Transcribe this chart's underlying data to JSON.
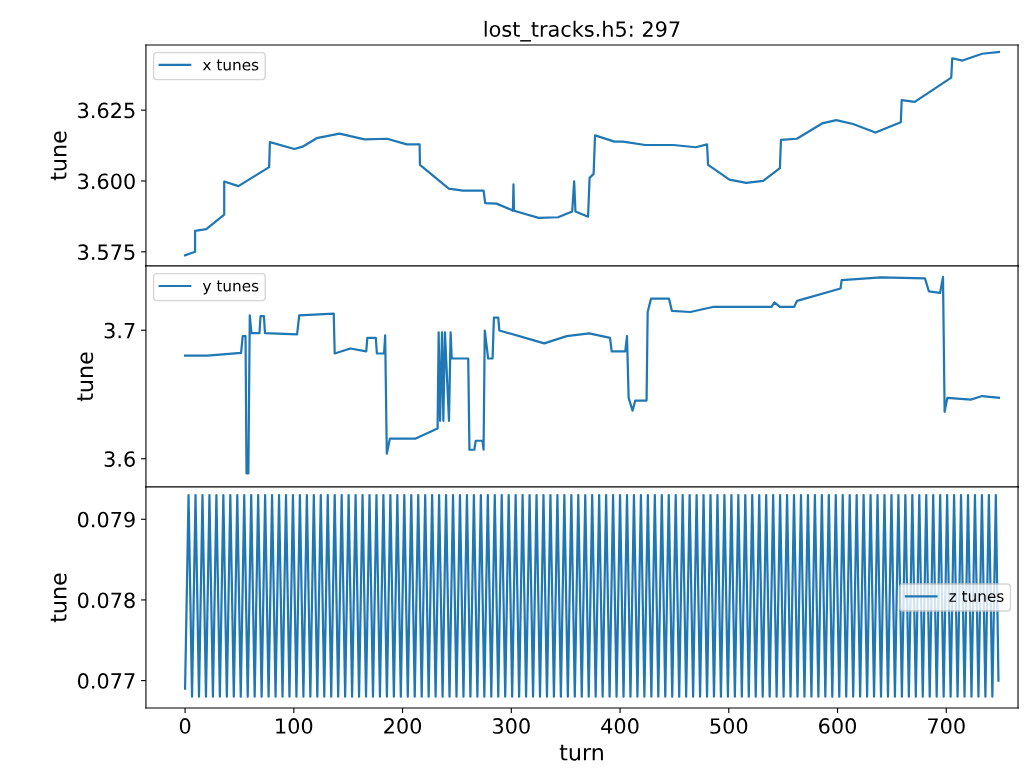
{
  "chart_data": [
    {
      "type": "line",
      "title": "lost_tracks.h5: 297",
      "ylabel": "tune",
      "xlim": [
        -36,
        766
      ],
      "ylim": [
        3.57,
        3.648
      ],
      "yticks": [
        3.575,
        {
          "value": 3.6,
          "label": "3.600"
        },
        3.625
      ],
      "tick_labels": "y",
      "legend": "top left",
      "grid": false,
      "series": [
        {
          "name": "x tunes",
          "color": "#1f77b4",
          "x": [
            0,
            9.2,
            9.2,
            19.5,
            36,
            36,
            49,
            77.3,
            78,
            100.5,
            108,
            121,
            142,
            165,
            185.7,
            203.9,
            215.7,
            216,
            242.5,
            255.5,
            274.5,
            276,
            286.4,
            299.5,
            301.5,
            302,
            302.5,
            325.1,
            343,
            356,
            357.8,
            359,
            370.6,
            372,
            375.7,
            377,
            394.9,
            402.6,
            423.2,
            449,
            469.7,
            480,
            481,
            500.6,
            516,
            531.6,
            547,
            548,
            562.6,
            585.8,
            598.8,
            614.3,
            634.9,
            658.2,
            659,
            671,
            704.6,
            705.5,
            714.9,
            733,
            748.5
          ],
          "values": [
            3.5738,
            3.575,
            3.5824,
            3.583,
            3.5881,
            3.5998,
            3.5982,
            3.6049,
            3.6137,
            3.6113,
            3.6121,
            3.6151,
            3.6167,
            3.6147,
            3.6149,
            3.6129,
            3.6129,
            3.6057,
            3.5973,
            3.5966,
            3.5966,
            3.5922,
            3.592,
            3.5899,
            3.5895,
            3.5988,
            3.5895,
            3.587,
            3.5872,
            3.5892,
            3.5999,
            3.5892,
            3.5874,
            3.6011,
            3.6025,
            3.6161,
            3.6139,
            3.6139,
            3.6127,
            3.6127,
            3.6119,
            3.6129,
            3.6057,
            3.6005,
            3.5993,
            3.6,
            3.6045,
            3.6145,
            3.6149,
            3.6203,
            3.6215,
            3.6201,
            3.6171,
            3.6207,
            3.6285,
            3.6279,
            3.6365,
            3.6433,
            3.6425,
            3.6449,
            3.6455
          ]
        }
      ]
    },
    {
      "type": "line",
      "ylabel": "tune",
      "xlim": [
        -36,
        766
      ],
      "ylim": [
        3.578,
        3.75
      ],
      "yticks": [
        3.6,
        3.7
      ],
      "tick_labels": "y",
      "legend": "top left",
      "grid": false,
      "series": [
        {
          "name": "y tunes",
          "color": "#1f77b4",
          "x": [
            0,
            20.5,
            51.5,
            53,
            55.6,
            56.5,
            58.2,
            59.5,
            61,
            68.4,
            69.4,
            72.5,
            73.5,
            103,
            105,
            136.7,
            137.6,
            152,
            166.6,
            167.6,
            175.4,
            176.4,
            183,
            184,
            185.5,
            188.3,
            211.6,
            232.2,
            233.2,
            234.5,
            236.3,
            237.5,
            239,
            242.7,
            244.2,
            245.2,
            260.4,
            261.5,
            266,
            267.3,
            273.5,
            274.5,
            275.6,
            278.7,
            282.8,
            284,
            288,
            289,
            320,
            330.3,
            351,
            371.6,
            390.8,
            392.3,
            404.8,
            406.4,
            407.9,
            411.5,
            414,
            424.4,
            425.4,
            428.5,
            445,
            447.7,
            464.6,
            485.2,
            539.3,
            542,
            547,
            560,
            562.8,
            602.8,
            603.8,
            640,
            680.4,
            684,
            694.3,
            697,
            698.5,
            701,
            722.6,
            733,
            748.5
          ],
          "values": [
            3.6802,
            3.6803,
            3.6823,
            3.6954,
            3.6954,
            3.5886,
            3.5886,
            3.7116,
            3.6977,
            3.6977,
            3.711,
            3.711,
            3.6977,
            3.6967,
            3.7116,
            3.7129,
            3.6819,
            3.6858,
            3.6836,
            3.6941,
            3.6941,
            3.6819,
            3.6819,
            3.696,
            3.6039,
            3.6156,
            3.6156,
            3.6235,
            3.6984,
            3.6295,
            3.6984,
            3.6295,
            3.6984,
            3.6295,
            3.6984,
            3.678,
            3.678,
            3.607,
            3.607,
            3.614,
            3.614,
            3.607,
            3.6998,
            3.678,
            3.678,
            3.7098,
            3.7098,
            3.6998,
            3.6923,
            3.6898,
            3.6954,
            3.6976,
            3.6941,
            3.6836,
            3.6836,
            3.6954,
            3.6474,
            3.6374,
            3.6453,
            3.6453,
            3.7142,
            3.7246,
            3.7246,
            3.715,
            3.7142,
            3.7181,
            3.7181,
            3.7216,
            3.7181,
            3.7181,
            3.7229,
            3.7325,
            3.739,
            3.7412,
            3.7403,
            3.7303,
            3.729,
            3.7415,
            3.6365,
            3.6474,
            3.646,
            3.6488,
            3.6474
          ]
        }
      ]
    },
    {
      "type": "line",
      "ylabel": "tune",
      "xlabel": "turn",
      "xlim": [
        -36,
        766
      ],
      "ylim": [
        0.07666,
        0.0794
      ],
      "yticks": [
        0.077,
        0.078,
        0.079
      ],
      "xticks": [
        0,
        100,
        200,
        300,
        400,
        500,
        600,
        700
      ],
      "legend": "center right",
      "grid": false,
      "series": [
        {
          "name": "z tunes",
          "color": "#1f77b4",
          "x": [
            0,
            3.2,
            6.4,
            9.6,
            12.8,
            16,
            19.2,
            22.4,
            25.6,
            28.8,
            32,
            35.2,
            38.4,
            41.6,
            44.8,
            48,
            51.2,
            54.4,
            57.6,
            60.8,
            64,
            67.2,
            70.4,
            73.6,
            76.8,
            80,
            83.2,
            86.4,
            89.6,
            92.8,
            96,
            99.2,
            102.4,
            105.6,
            108.8,
            112,
            115.2,
            118.4,
            121.6,
            124.8,
            128,
            131.2,
            134.4,
            137.6,
            140.8,
            144,
            147.2,
            150.4,
            153.6,
            156.8,
            160,
            163.2,
            166.4,
            169.6,
            172.8,
            176,
            179.2,
            182.4,
            185.6,
            188.8,
            192,
            195.2,
            198.4,
            201.6,
            204.8,
            208,
            211.2,
            214.4,
            217.6,
            220.8,
            224,
            227.2,
            230.4,
            233.6,
            236.8,
            240,
            243.2,
            246.4,
            249.6,
            252.8,
            256,
            259.2,
            262.4,
            265.6,
            268.8,
            272,
            275.2,
            278.4,
            281.6,
            284.8,
            288,
            291.2,
            294.4,
            297.6,
            300.8,
            304,
            307.2,
            310.4,
            313.6,
            316.8,
            320,
            323.2,
            326.4,
            329.6,
            332.8,
            336,
            339.2,
            342.4,
            345.6,
            348.8,
            352,
            355.2,
            358.4,
            361.6,
            364.8,
            368,
            371.2,
            374.4,
            377.6,
            380.8,
            384,
            387.2,
            390.4,
            393.6,
            396.8,
            400,
            403.2,
            406.4,
            409.6,
            412.8,
            416,
            419.2,
            422.4,
            425.6,
            428.8,
            432,
            435.2,
            438.4,
            441.6,
            444.8,
            448,
            451.2,
            454.4,
            457.6,
            460.8,
            464,
            467.2,
            470.4,
            473.6,
            476.8,
            480,
            483.2,
            486.4,
            489.6,
            492.8,
            496,
            499.2,
            502.4,
            505.6,
            508.8,
            512,
            515.2,
            518.4,
            521.6,
            524.8,
            528,
            531.2,
            534.4,
            537.6,
            540.8,
            544,
            547.2,
            550.4,
            553.6,
            556.8,
            560,
            563.2,
            566.4,
            569.6,
            572.8,
            576,
            579.2,
            582.4,
            585.6,
            588.8,
            592,
            595.2,
            598.4,
            601.6,
            604.8,
            608,
            611.2,
            614.4,
            617.6,
            620.8,
            624,
            627.2,
            630.4,
            633.6,
            636.8,
            640,
            643.2,
            646.4,
            649.6,
            652.8,
            656,
            659.2,
            662.4,
            665.6,
            668.8,
            672,
            675.2,
            678.4,
            681.6,
            684.8,
            688,
            691.2,
            694.4,
            697.6,
            700.8,
            704,
            707.2,
            710.4,
            713.6,
            716.8,
            720,
            723.2,
            726.4,
            729.6,
            732.8,
            736,
            739.2,
            742.4,
            745.6,
            748
          ],
          "values": [
            0.0769,
            0.0793,
            0.0768,
            0.0793,
            0.0768,
            0.0793,
            0.0768,
            0.0793,
            0.0768,
            0.0793,
            0.0768,
            0.0793,
            0.0768,
            0.0793,
            0.0768,
            0.0793,
            0.0768,
            0.0793,
            0.0768,
            0.0793,
            0.0768,
            0.0793,
            0.0768,
            0.0793,
            0.0768,
            0.0793,
            0.0768,
            0.0793,
            0.0768,
            0.0793,
            0.0768,
            0.0793,
            0.0768,
            0.0793,
            0.0768,
            0.0793,
            0.0768,
            0.0793,
            0.0768,
            0.0793,
            0.0768,
            0.0793,
            0.0768,
            0.0793,
            0.0768,
            0.0793,
            0.0768,
            0.0793,
            0.0768,
            0.0793,
            0.0768,
            0.0793,
            0.0768,
            0.0793,
            0.0768,
            0.0793,
            0.0768,
            0.0793,
            0.0768,
            0.0793,
            0.0768,
            0.0793,
            0.0768,
            0.0793,
            0.0768,
            0.0793,
            0.0768,
            0.0793,
            0.0768,
            0.0793,
            0.0768,
            0.0793,
            0.0768,
            0.0793,
            0.0768,
            0.0793,
            0.0768,
            0.0793,
            0.0768,
            0.0793,
            0.0768,
            0.0793,
            0.0768,
            0.0793,
            0.0768,
            0.0793,
            0.0768,
            0.0793,
            0.0768,
            0.0793,
            0.0768,
            0.0793,
            0.0768,
            0.0793,
            0.0768,
            0.0793,
            0.0768,
            0.0793,
            0.0768,
            0.0793,
            0.0768,
            0.0793,
            0.0768,
            0.0793,
            0.0768,
            0.0793,
            0.0768,
            0.0793,
            0.0768,
            0.0793,
            0.0768,
            0.0793,
            0.0768,
            0.0793,
            0.0768,
            0.0793,
            0.0768,
            0.0793,
            0.0768,
            0.0793,
            0.0768,
            0.0793,
            0.0768,
            0.0793,
            0.0768,
            0.0793,
            0.0768,
            0.0793,
            0.0768,
            0.0793,
            0.0768,
            0.0793,
            0.0768,
            0.0793,
            0.0768,
            0.0793,
            0.0768,
            0.0793,
            0.0768,
            0.0793,
            0.0768,
            0.0793,
            0.0768,
            0.0793,
            0.0768,
            0.0793,
            0.0768,
            0.0793,
            0.0768,
            0.0793,
            0.0768,
            0.0793,
            0.0768,
            0.0793,
            0.0768,
            0.0793,
            0.0768,
            0.0793,
            0.0768,
            0.0793,
            0.0768,
            0.0793,
            0.0768,
            0.0793,
            0.0768,
            0.0793,
            0.0768,
            0.0793,
            0.0768,
            0.0793,
            0.0768,
            0.0793,
            0.0768,
            0.0793,
            0.0768,
            0.0793,
            0.0768,
            0.0793,
            0.0768,
            0.0793,
            0.0768,
            0.0793,
            0.0768,
            0.0793,
            0.0768,
            0.0793,
            0.0768,
            0.0793,
            0.0768,
            0.0793,
            0.0768,
            0.0793,
            0.0768,
            0.0793,
            0.0768,
            0.0793,
            0.0768,
            0.0793,
            0.0768,
            0.0793,
            0.0768,
            0.0793,
            0.0768,
            0.0793,
            0.0768,
            0.0793,
            0.0768,
            0.0793,
            0.0768,
            0.0793,
            0.0768,
            0.0793,
            0.0768,
            0.0793,
            0.0768,
            0.0793,
            0.0768,
            0.0793,
            0.0768,
            0.0793,
            0.0768,
            0.0793,
            0.0768,
            0.0793,
            0.0768,
            0.0793,
            0.0768,
            0.0793,
            0.0768,
            0.0793,
            0.0768,
            0.0793,
            0.0768,
            0.0793,
            0.077
          ]
        }
      ]
    }
  ]
}
